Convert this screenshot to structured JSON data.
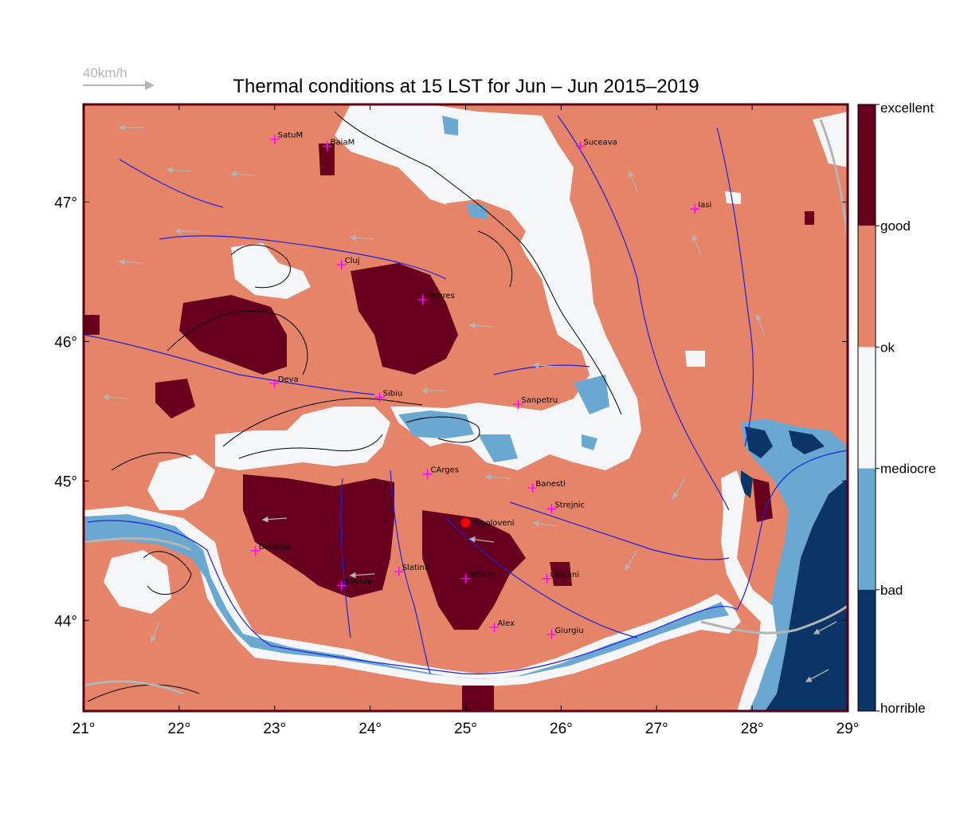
{
  "title": "Thermal conditions at 15 LST for Jun – Jun  2015–2019",
  "wind_scale": {
    "label": "40km/h",
    "arrow_color": "#b4b4b4"
  },
  "axes": {
    "x_ticks": [
      {
        "value": 21,
        "label": "21°"
      },
      {
        "value": 22,
        "label": "22°"
      },
      {
        "value": 23,
        "label": "23°"
      },
      {
        "value": 24,
        "label": "24°"
      },
      {
        "value": 25,
        "label": "25°"
      },
      {
        "value": 26,
        "label": "26°"
      },
      {
        "value": 27,
        "label": "27°"
      },
      {
        "value": 28,
        "label": "28°"
      },
      {
        "value": 29,
        "label": "29°"
      }
    ],
    "y_ticks": [
      {
        "value": 44,
        "label": "44°"
      },
      {
        "value": 45,
        "label": "45°"
      },
      {
        "value": 46,
        "label": "46°"
      },
      {
        "value": 47,
        "label": "47°"
      }
    ],
    "lon_range": [
      21,
      29
    ],
    "lat_range": [
      43.35,
      47.7
    ]
  },
  "legend": {
    "classes": [
      {
        "label": "excellent",
        "color": "#67001f"
      },
      {
        "label": "good",
        "color": "#e58468"
      },
      {
        "label": "ok",
        "color": "#f5f6f8"
      },
      {
        "label": "mediocre",
        "color": "#6aa8d2"
      },
      {
        "label": "bad",
        "color": "#0b3566"
      },
      {
        "label": "horrible",
        "color": ""
      }
    ]
  },
  "colors": {
    "frame": "#5a0012",
    "river": "#2020dd",
    "road": "#b4b4b4",
    "city_marker": "#ff00ff",
    "highlight_marker": "#ff0000",
    "contour": "#000000"
  },
  "cities": [
    {
      "name": "SatuM",
      "lon": 23.0,
      "lat": 47.45
    },
    {
      "name": "BaiaM",
      "lon": 23.55,
      "lat": 47.4
    },
    {
      "name": "Suceava",
      "lon": 26.2,
      "lat": 47.4
    },
    {
      "name": "Iasi",
      "lon": 27.4,
      "lat": 46.95
    },
    {
      "name": "Cluj",
      "lon": 23.7,
      "lat": 46.55
    },
    {
      "name": "TMures",
      "lon": 24.55,
      "lat": 46.3
    },
    {
      "name": "Deva",
      "lon": 23.0,
      "lat": 45.7
    },
    {
      "name": "Sibiu",
      "lon": 24.1,
      "lat": 45.6
    },
    {
      "name": "Sanpetru",
      "lon": 25.55,
      "lat": 45.55
    },
    {
      "name": "CArges",
      "lon": 24.6,
      "lat": 45.05
    },
    {
      "name": "Banesti",
      "lon": 25.7,
      "lat": 44.95
    },
    {
      "name": "Strejnic",
      "lon": 25.9,
      "lat": 44.8
    },
    {
      "name": "Drobeta",
      "lon": 22.8,
      "lat": 44.5
    },
    {
      "name": "Slatina",
      "lon": 24.3,
      "lat": 44.35
    },
    {
      "name": "SVerde",
      "lon": 23.7,
      "lat": 44.25
    },
    {
      "name": "StGum",
      "lon": 25.0,
      "lat": 44.3
    },
    {
      "name": "Ciocani",
      "lon": 25.85,
      "lat": 44.3
    },
    {
      "name": "Alex",
      "lon": 25.3,
      "lat": 43.95
    },
    {
      "name": "Giurgiu",
      "lon": 25.9,
      "lat": 43.9
    }
  ],
  "highlight_site": {
    "name": "Topoloveni",
    "lon": 25.0,
    "lat": 44.7
  }
}
